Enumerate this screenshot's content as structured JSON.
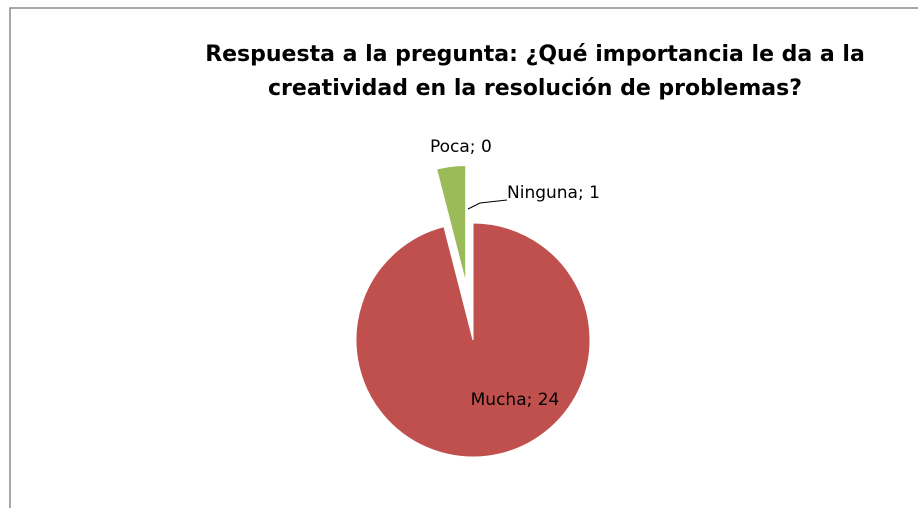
{
  "chart_data": {
    "type": "pie",
    "title": "Respuesta a la pregunta: ¿Qué importancia le da a la creatividad en la resolución de problemas?",
    "categories": [
      "Mucha",
      "Ninguna",
      "Poca"
    ],
    "values": [
      24,
      1,
      0
    ],
    "value_labels": [
      "Mucha; 24",
      "Ninguna; 1",
      "Poca; 0"
    ],
    "colors": [
      "#c0504d",
      "#9bbb59",
      "#4f81bd"
    ]
  }
}
